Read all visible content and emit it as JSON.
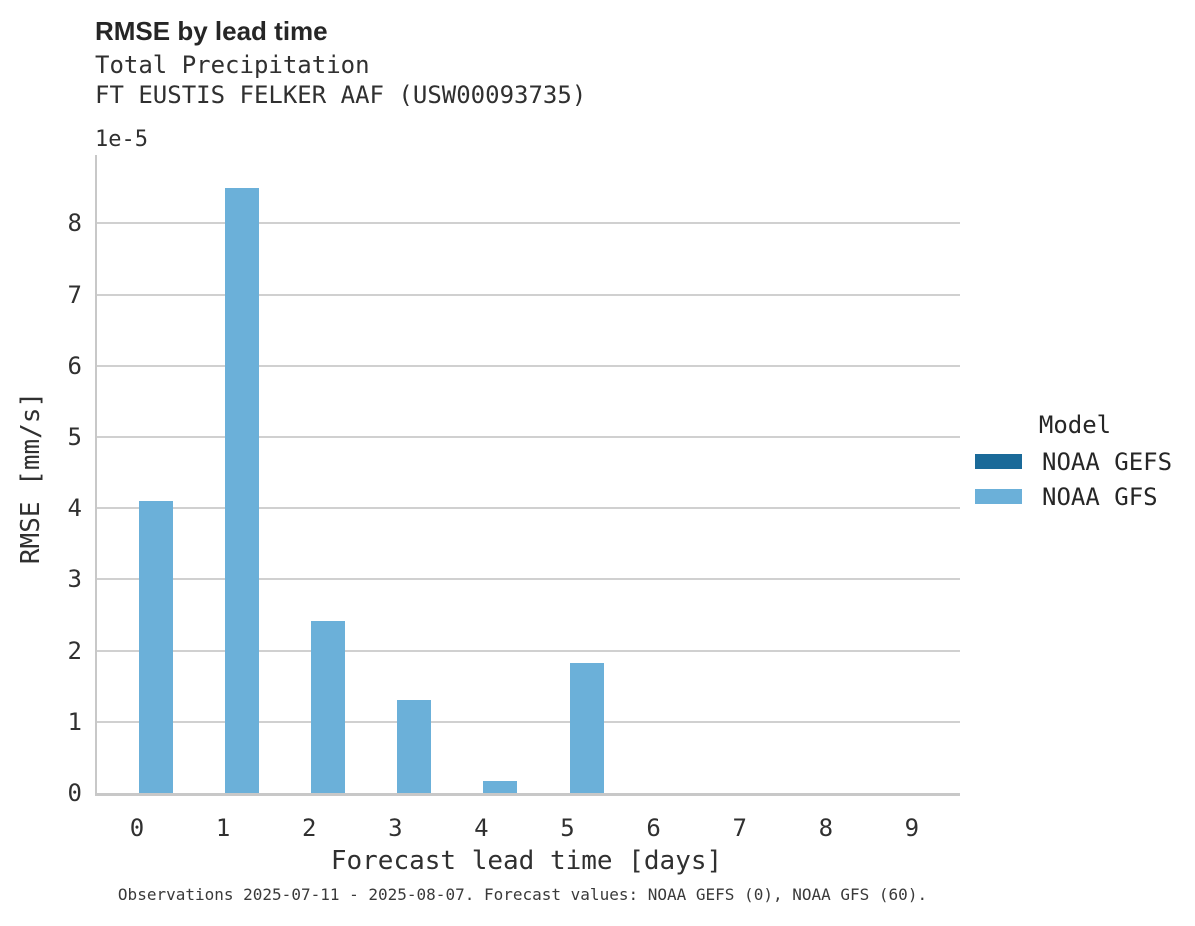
{
  "header": {
    "title": "RMSE by lead time",
    "subtitle_line1": "Total Precipitation",
    "subtitle_line2": "FT EUSTIS FELKER AAF (USW00093735)"
  },
  "chart_data": {
    "type": "bar",
    "title": "RMSE by lead time",
    "subtitle": [
      "Total Precipitation",
      "FT EUSTIS FELKER AAF (USW00093735)"
    ],
    "xlabel": "Forecast lead time [days]",
    "ylabel": "RMSE [mm/s]",
    "y_offset_label": "1e-5",
    "value_scale": 1e-05,
    "categories": [
      "0",
      "1",
      "2",
      "3",
      "4",
      "5",
      "6",
      "7",
      "8",
      "9"
    ],
    "series": [
      {
        "name": "NOAA GEFS",
        "color": "#1a6a99",
        "values_1e5": [
          0,
          0,
          0,
          0,
          0,
          0,
          0,
          0,
          0,
          0
        ]
      },
      {
        "name": "NOAA GFS",
        "color": "#6bb0d9",
        "values_1e5": [
          4.1,
          8.5,
          2.42,
          1.3,
          0.17,
          1.82,
          0,
          0,
          0,
          0
        ]
      }
    ],
    "ylim_1e5": [
      0,
      8.96
    ],
    "y_ticks_1e5": [
      0,
      1,
      2,
      3,
      4,
      5,
      6,
      7,
      8
    ],
    "grid": "horizontal-only",
    "legend_position": "center-right"
  },
  "legend": {
    "title": "Model",
    "entries": [
      {
        "label": "NOAA GEFS",
        "color": "#1a6a99"
      },
      {
        "label": "NOAA GFS",
        "color": "#6bb0d9"
      }
    ]
  },
  "footer": {
    "caption": "Observations 2025-07-11 - 2025-08-07. Forecast values: NOAA GEFS (0), NOAA GFS (60)."
  },
  "colors": {
    "noaa_gefs": "#1a6a99",
    "noaa_gfs": "#6bb0d9",
    "gridline": "#d0d0d0",
    "axis_spine": "#c8c8c8",
    "text": "#262626"
  }
}
